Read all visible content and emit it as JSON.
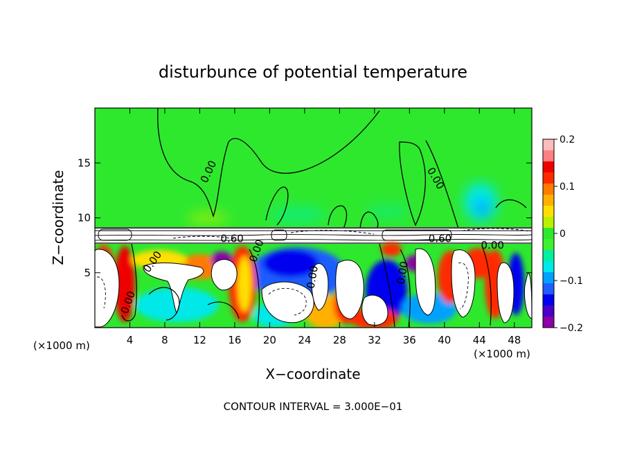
{
  "chart_data": {
    "type": "heatmap",
    "title": "disturbunce of potential temperature",
    "xlabel": "X−coordinate",
    "ylabel": "Z−coordinate",
    "x_unit": "(×1000 m)",
    "x_unit_right": "(×1000 m)",
    "footer": "CONTOUR INTERVAL = 3.000E−01",
    "xlim": [
      0,
      50
    ],
    "ylim": [
      0,
      20
    ],
    "x_ticks": [
      4,
      8,
      12,
      16,
      20,
      24,
      28,
      32,
      36,
      40,
      44,
      48
    ],
    "y_ticks": [
      5,
      10,
      15
    ],
    "colorbar": {
      "min": -0.2,
      "max": 0.2,
      "tick_values": [
        -0.2,
        -0.1,
        0,
        0.1,
        0.2
      ],
      "tick_labels": [
        "−0.2",
        "−0.1",
        "0",
        "0.1",
        "0.2"
      ],
      "colors": [
        "#8b00a8",
        "#4a00c8",
        "#0000ee",
        "#1f5dff",
        "#00a0ff",
        "#00e8e8",
        "#00f0a0",
        "#3ef030",
        "#2ee82e",
        "#b8f000",
        "#ffe000",
        "#ffb000",
        "#ff7a00",
        "#ff2a00",
        "#ee0000",
        "#ff8080",
        "#ffbcbc"
      ]
    },
    "contour_labels": [
      {
        "text": "0.00",
        "x": 13.0,
        "z": 14.2,
        "angle": -65
      },
      {
        "text": "0.00",
        "x": 39.0,
        "z": 13.6,
        "angle": 60
      },
      {
        "text": "0.60",
        "x": 15.7,
        "z": 8.1,
        "angle": 0
      },
      {
        "text": "0.60",
        "x": 39.5,
        "z": 8.1,
        "angle": 0
      },
      {
        "text": "0.00",
        "x": 45.5,
        "z": 7.5,
        "angle": 0
      },
      {
        "text": "0.00",
        "x": 6.6,
        "z": 6.0,
        "angle": -55
      },
      {
        "text": "0.00",
        "x": 18.5,
        "z": 7.0,
        "angle": -70
      },
      {
        "text": "0.00",
        "x": 24.9,
        "z": 4.6,
        "angle": -80
      },
      {
        "text": "0.00",
        "x": 35.2,
        "z": 5.0,
        "angle": -80
      },
      {
        "text": "0.00",
        "x": 3.8,
        "z": 2.3,
        "angle": -70
      }
    ]
  }
}
